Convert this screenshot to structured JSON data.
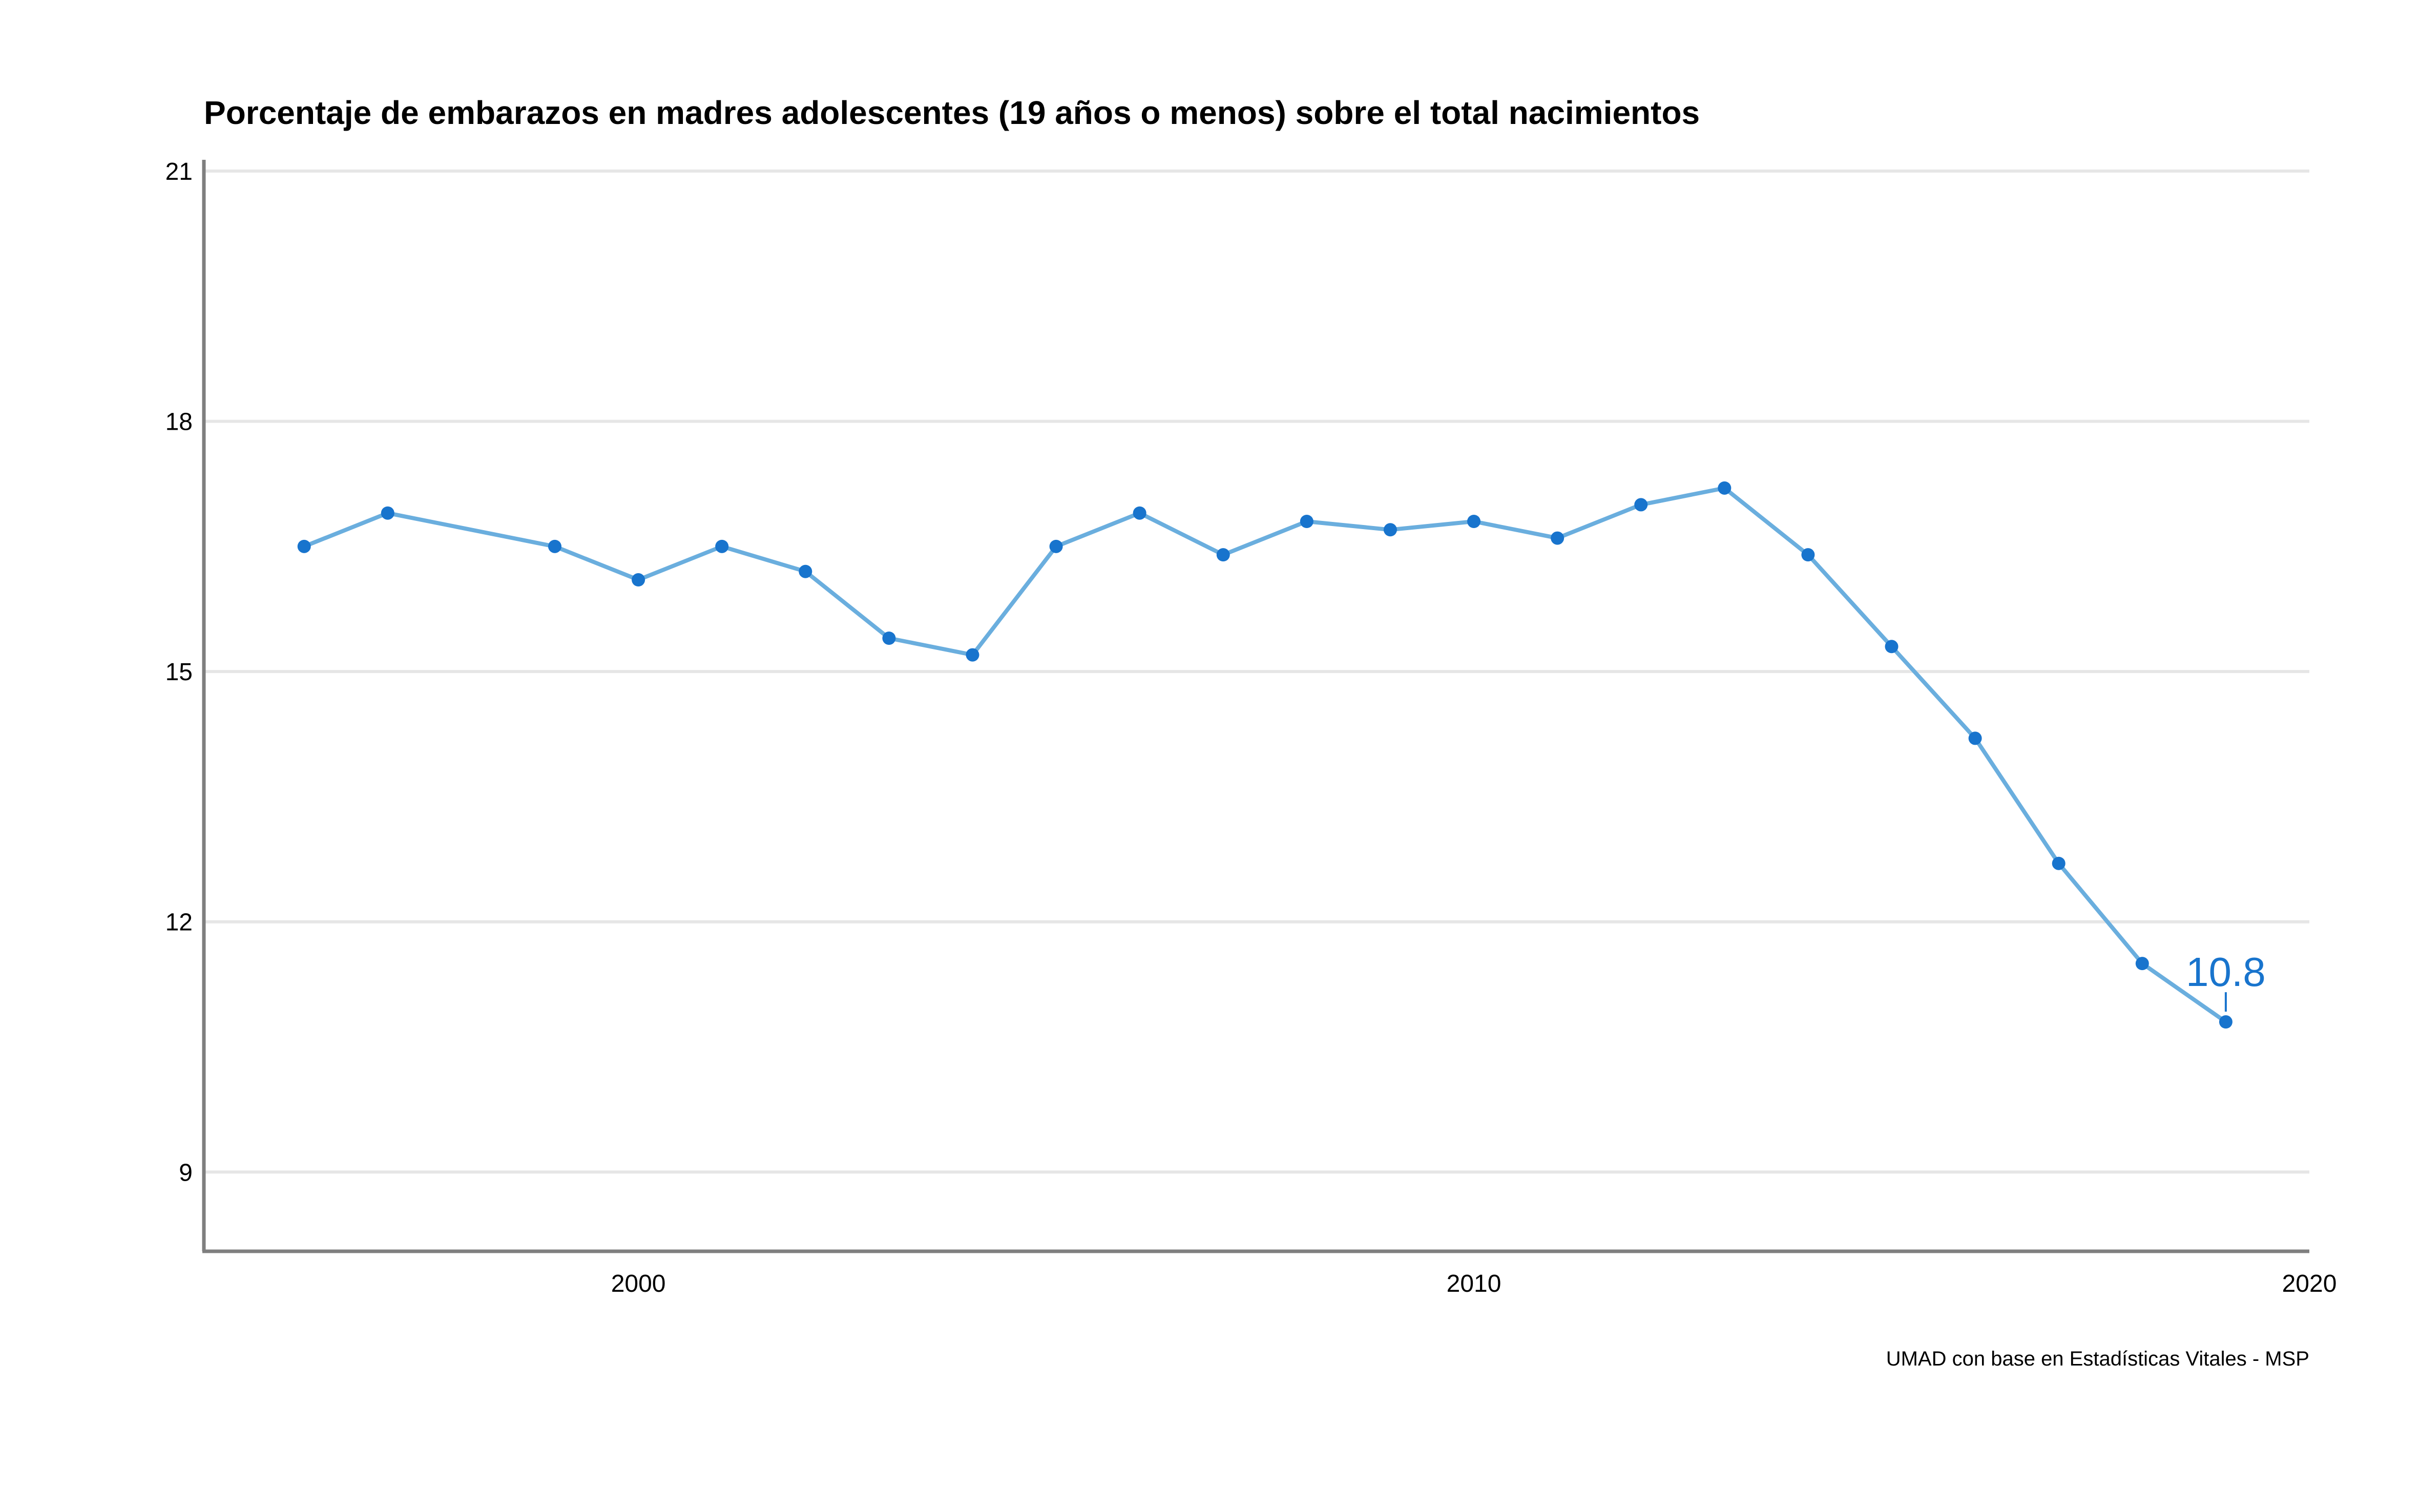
{
  "chart_data": {
    "type": "line",
    "title": "Porcentaje de embarazos en madres adolescentes (19 años o menos) sobre el total nacimientos",
    "caption": "UMAD con base en Estadísticas Vitales - MSP",
    "xlabel": "",
    "ylabel": "",
    "xlim": [
      1994.8,
      2020
    ],
    "ylim": [
      8.05,
      21.0
    ],
    "x_ticks": [
      2000,
      2010,
      2020
    ],
    "y_ticks": [
      9,
      12,
      15,
      18,
      21
    ],
    "grid": "horizontal",
    "legend": "none",
    "colors": {
      "line": "#6aaede",
      "point": "#1874cd",
      "label": "#1874cd",
      "grid": "#e6e6e6",
      "axis": "#7f7f7f"
    },
    "series": [
      {
        "x": [
          1996,
          1997,
          1999,
          2000,
          2001,
          2002,
          2003,
          2004,
          2005,
          2006,
          2007,
          2008,
          2009,
          2010,
          2011,
          2012,
          2013,
          2014,
          2015,
          2016,
          2017,
          2018,
          2019
        ],
        "values": [
          16.5,
          16.9,
          16.5,
          16.1,
          16.5,
          16.2,
          15.4,
          15.2,
          16.5,
          16.9,
          16.4,
          16.8,
          16.7,
          16.8,
          16.6,
          17.0,
          17.2,
          16.4,
          15.3,
          14.2,
          12.7,
          11.5,
          10.8
        ]
      }
    ],
    "annotations": [
      {
        "x": 2019,
        "y": 10.8,
        "text": "10.8"
      }
    ]
  }
}
